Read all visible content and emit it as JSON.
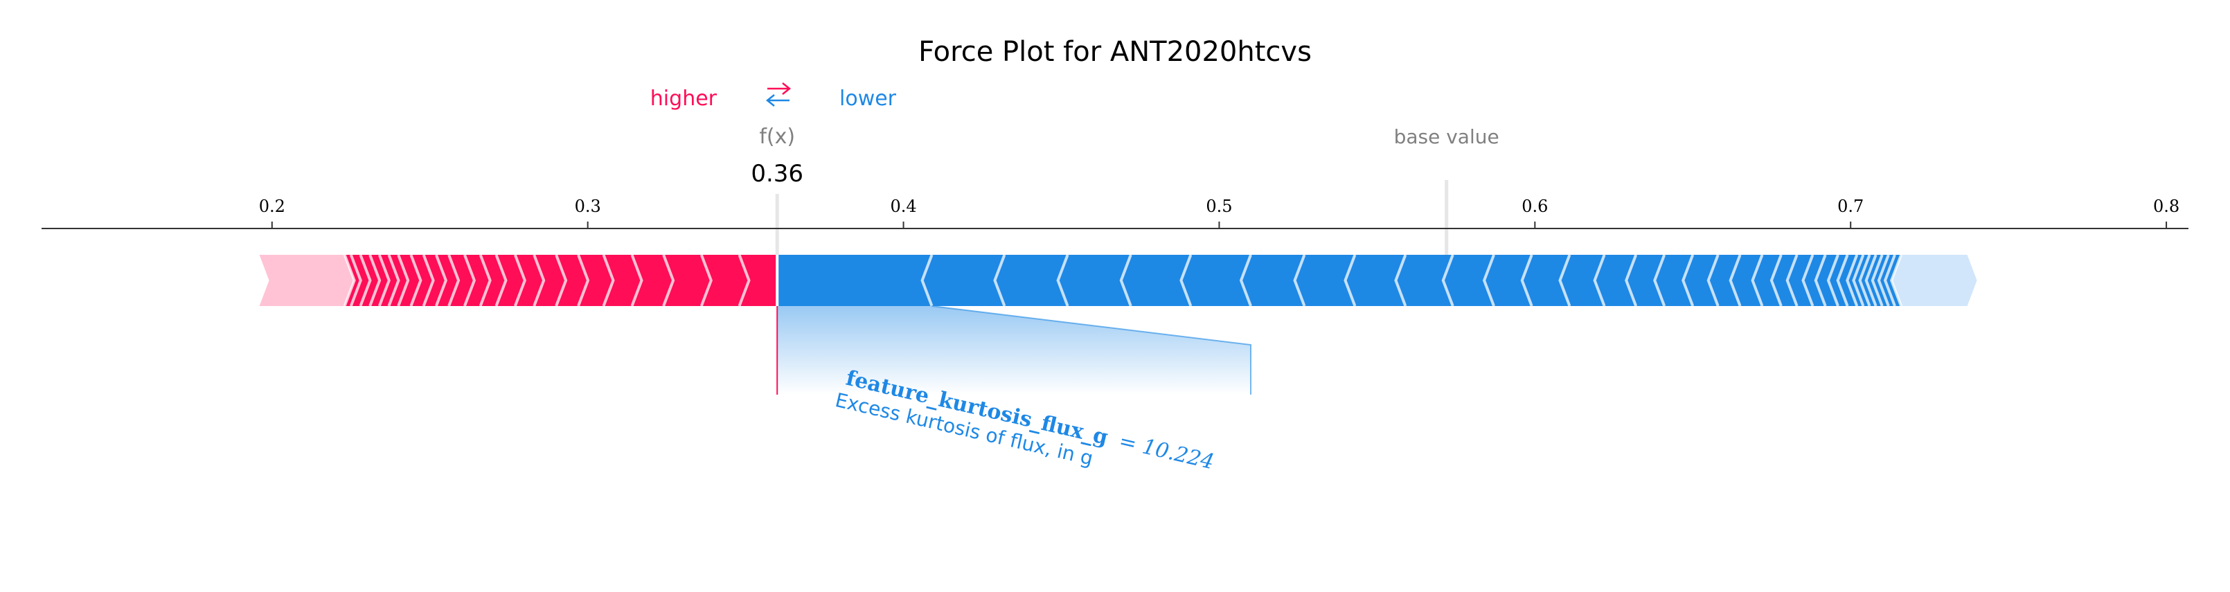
{
  "chart_data": {
    "type": "force",
    "title": "Force Plot for ANT2020htcvs",
    "legend": {
      "higher": "higher",
      "lower": "lower",
      "arrows": "⇄"
    },
    "fx": {
      "label": "f(x)",
      "value": 0.36,
      "value_text": "0.36"
    },
    "base_value": {
      "label": "base value",
      "value": 0.572
    },
    "axis": {
      "xlim": [
        0.127,
        0.807
      ],
      "ticks": [
        0.2,
        0.3,
        0.4,
        0.5,
        0.6,
        0.7,
        0.8
      ],
      "tick_labels": [
        "0.2",
        "0.3",
        "0.4",
        "0.5",
        "0.6",
        "0.7",
        "0.8"
      ]
    },
    "positive_boundaries": [
      0.196,
      0.223,
      0.225,
      0.228,
      0.231,
      0.234,
      0.237,
      0.24,
      0.244,
      0.248,
      0.252,
      0.256,
      0.261,
      0.266,
      0.271,
      0.277,
      0.283,
      0.29,
      0.297,
      0.305,
      0.314,
      0.324,
      0.336,
      0.348,
      0.36
    ],
    "negative_boundaries": [
      0.36,
      0.409,
      0.432,
      0.452,
      0.472,
      0.491,
      0.51,
      0.527,
      0.543,
      0.559,
      0.574,
      0.587,
      0.599,
      0.611,
      0.622,
      0.632,
      0.641,
      0.65,
      0.658,
      0.665,
      0.672,
      0.678,
      0.683,
      0.688,
      0.692,
      0.696,
      0.699,
      0.702,
      0.704,
      0.706,
      0.708,
      0.71,
      0.712,
      0.714,
      0.716,
      0.74
    ],
    "feature_label": {
      "name": "feature_kurtosis_flux_g",
      "value_text": "= 10.224",
      "description": "Excess kurtosis of flux, in g",
      "segment": [
        0.36,
        0.409
      ],
      "highlight_end": 0.51
    },
    "colors": {
      "positive": "#ff0d57",
      "positive_light": "#ffc3d5",
      "negative": "#1e88e5",
      "negative_light": "#d1e6fa",
      "separator": "#e8e8e8",
      "text": "#000000",
      "muted": "#808080"
    }
  }
}
